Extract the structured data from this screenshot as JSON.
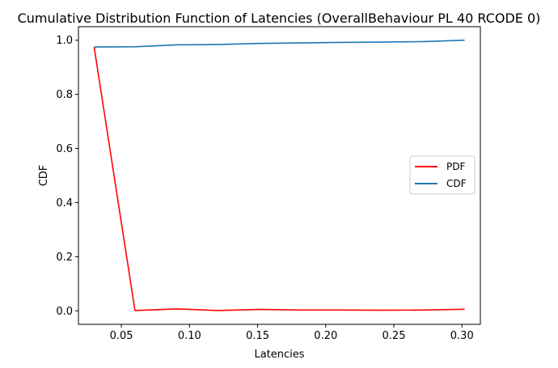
{
  "chart_data": {
    "type": "line",
    "title": "Cumulative Distribution Function of Latencies (OverallBehaviour PL 40 RCODE 0)",
    "xlabel": "Latencies",
    "ylabel": "CDF",
    "xlim": [
      0.0185,
      0.3135
    ],
    "ylim": [
      -0.05,
      1.05
    ],
    "xticks": [
      0.05,
      0.1,
      0.15,
      0.2,
      0.25,
      0.3
    ],
    "xtick_labels": [
      "0.05",
      "0.10",
      "0.15",
      "0.20",
      "0.25",
      "0.30"
    ],
    "yticks": [
      0.0,
      0.2,
      0.4,
      0.6,
      0.8,
      1.0
    ],
    "ytick_labels": [
      "0.0",
      "0.2",
      "0.4",
      "0.6",
      "0.8",
      "1.0"
    ],
    "grid": false,
    "legend_position": "center-right",
    "x": [
      0.03,
      0.06,
      0.091,
      0.121,
      0.151,
      0.181,
      0.211,
      0.241,
      0.272,
      0.302
    ],
    "series": [
      {
        "name": "PDF",
        "color": "#ff0000",
        "values": [
          0.975,
          0.001,
          0.007,
          0.001,
          0.005,
          0.003,
          0.003,
          0.002,
          0.003,
          0.006
        ]
      },
      {
        "name": "CDF",
        "color": "#1f77b4",
        "values": [
          0.975,
          0.976,
          0.983,
          0.984,
          0.988,
          0.99,
          0.992,
          0.993,
          0.995,
          1.0
        ]
      }
    ]
  }
}
